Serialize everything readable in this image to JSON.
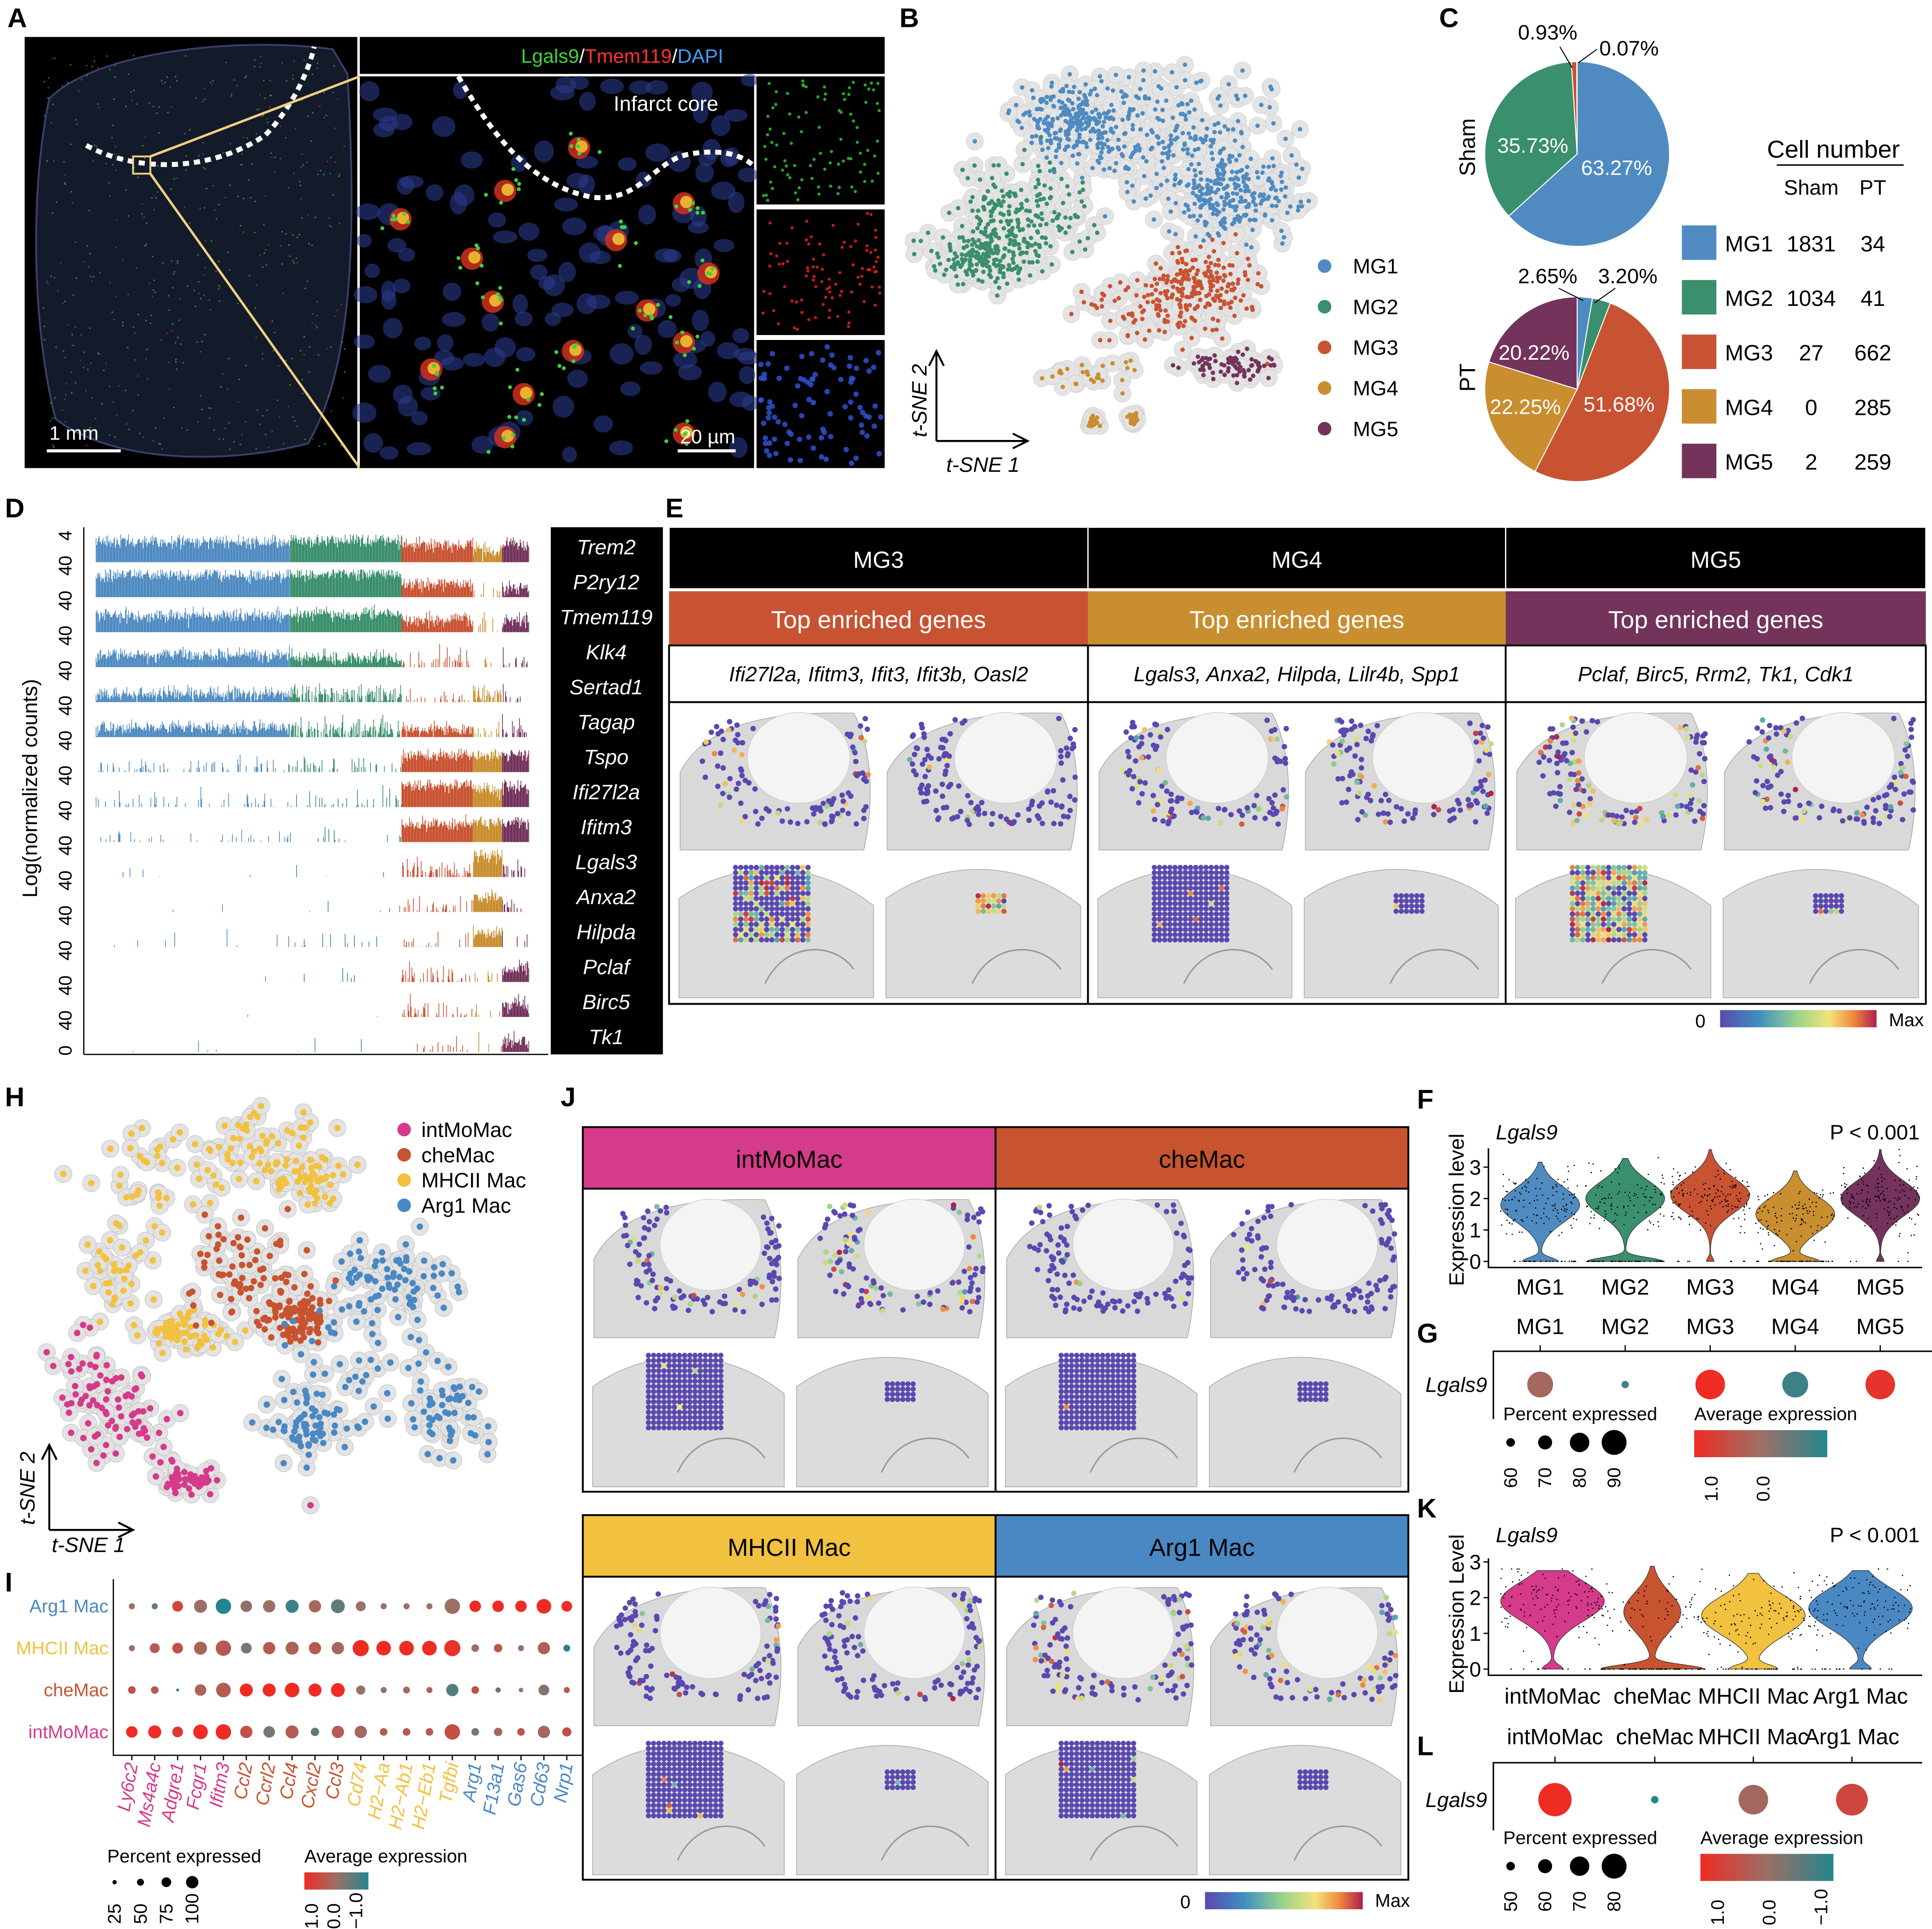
{
  "panel_labels": {
    "A": "A",
    "B": "B",
    "C": "C",
    "D": "D",
    "E": "E",
    "F": "F",
    "G": "G",
    "H": "H",
    "I": "I",
    "J": "J",
    "K": "K",
    "L": "L"
  },
  "panel_a": {
    "header": {
      "green": "Lgals9",
      "sep1": "/",
      "red": "Tmem119",
      "sep2": "/",
      "blue": "DAPI"
    },
    "infarct_label": "Infarct core",
    "scale_left": "1 mm",
    "scale_right": "20 µm"
  },
  "panel_b": {
    "xlabel": "t-SNE 1",
    "ylabel": "t-SNE 2",
    "legend": [
      {
        "name": "MG1",
        "color": "#4f8bc1"
      },
      {
        "name": "MG2",
        "color": "#3a8f6c"
      },
      {
        "name": "MG3",
        "color": "#c85332"
      },
      {
        "name": "MG4",
        "color": "#c98e2f"
      },
      {
        "name": "MG5",
        "color": "#73335b"
      }
    ]
  },
  "panel_c": {
    "sham_label": "Sham",
    "pt_label": "PT",
    "table_title": "Cell number",
    "col_sham": "Sham",
    "col_pt": "PT",
    "rows": [
      {
        "name": "MG1",
        "sham": "1831",
        "pt": "34",
        "color": "#4f8bc1"
      },
      {
        "name": "MG2",
        "sham": "1034",
        "pt": "41",
        "color": "#3a8f6c"
      },
      {
        "name": "MG3",
        "sham": "27",
        "pt": "662",
        "color": "#c85332"
      },
      {
        "name": "MG4",
        "sham": "0",
        "pt": "285",
        "color": "#c98e2f"
      },
      {
        "name": "MG5",
        "sham": "2",
        "pt": "259",
        "color": "#73335b"
      }
    ],
    "sham_pct_labels": [
      "63.27%",
      "35.73%",
      "0.93%",
      "0.07%"
    ],
    "pt_pct_labels": [
      "2.65%",
      "3.20%",
      "51.68%",
      "22.25%",
      "20.22%"
    ]
  },
  "panel_d": {
    "ylabel": "Log(normalized counts)",
    "tick_low": "0",
    "tick_high": "4",
    "genes": [
      "Trem2",
      "P2ry12",
      "Tmem119",
      "Klk4",
      "Sertad1",
      "Tagap",
      "Tspo",
      "Ifi27l2a",
      "Ifitm3",
      "Lgals3",
      "Anxa2",
      "Hilpda",
      "Pclaf",
      "Birc5",
      "Tk1"
    ],
    "cluster_levels": [
      [
        3.0,
        3.2,
        2.6,
        1.8,
        2.6
      ],
      [
        3.2,
        3.4,
        2.0,
        0.4,
        1.4
      ],
      [
        2.4,
        2.6,
        1.8,
        0.5,
        1.6
      ],
      [
        1.8,
        1.4,
        0.6,
        0.4,
        0.4
      ],
      [
        1.2,
        1.0,
        0.3,
        1.0,
        0.4
      ],
      [
        1.4,
        1.0,
        1.2,
        0.4,
        0.7
      ],
      [
        0.4,
        0.5,
        2.5,
        2.5,
        2.5
      ],
      [
        0.3,
        0.3,
        3.2,
        2.6,
        3.0
      ],
      [
        0.3,
        0.2,
        2.6,
        2.8,
        2.6
      ],
      [
        0.02,
        0.02,
        0.8,
        3.2,
        0.8
      ],
      [
        0.02,
        0.02,
        0.5,
        2.2,
        0.6
      ],
      [
        0.1,
        0.1,
        0.3,
        2.0,
        0.2
      ],
      [
        0.01,
        0.01,
        0.6,
        0.3,
        2.0
      ],
      [
        0.01,
        0.01,
        0.6,
        0.3,
        1.8
      ],
      [
        0.01,
        0.01,
        0.3,
        0.2,
        1.5
      ]
    ]
  },
  "panel_e": {
    "columns": [
      {
        "title": "MG3",
        "band": "Top enriched genes",
        "genes": "Ifi27l2a, Ifitm3, Ifit3, Ifit3b, Oasl2",
        "color": "#c85332"
      },
      {
        "title": "MG4",
        "band": "Top enriched genes",
        "genes": "Lgals3, Anxa2, Hilpda, Lilr4b, Spp1",
        "color": "#c98e2f"
      },
      {
        "title": "MG5",
        "band": "Top enriched genes",
        "genes": "Pclaf, Birc5, Rrm2, Tk1, Cdk1",
        "color": "#73335b"
      }
    ],
    "colorbar_min": "0",
    "colorbar_max": "Max"
  },
  "panel_h": {
    "xlabel": "t-SNE 1",
    "ylabel": "t-SNE 2",
    "legend": [
      {
        "name": "intMoMac",
        "color": "#d63a8a"
      },
      {
        "name": "cheMac",
        "color": "#c8532f"
      },
      {
        "name": "MHCII Mac",
        "color": "#f2c13f"
      },
      {
        "name": "Arg1 Mac",
        "color": "#4a88c4"
      }
    ]
  },
  "panel_j": {
    "cells": [
      {
        "title": "intMoMac",
        "color": "#d63a8a",
        "text_color": "#000000"
      },
      {
        "title": "cheMac",
        "color": "#c8532f",
        "text_color": "#000000"
      },
      {
        "title": "MHCII Mac",
        "color": "#f2c13f",
        "text_color": "#000000"
      },
      {
        "title": "Arg1 Mac",
        "color": "#4a88c4",
        "text_color": "#000000"
      }
    ],
    "colorbar_min": "0",
    "colorbar_max": "Max"
  },
  "chart_data": [
    {
      "id": "pie-sham",
      "type": "pie",
      "label": "Sham",
      "categories": [
        "MG1",
        "MG2",
        "MG3",
        "MG4",
        "MG5"
      ],
      "values": [
        63.27,
        35.73,
        0.93,
        0,
        0.07
      ],
      "colors": [
        "#4f8bc1",
        "#3a8f6c",
        "#c85332",
        "#c98e2f",
        "#73335b"
      ]
    },
    {
      "id": "pie-pt",
      "type": "pie",
      "label": "PT",
      "categories": [
        "MG1",
        "MG2",
        "MG3",
        "MG4",
        "MG5"
      ],
      "values": [
        2.65,
        3.2,
        51.68,
        22.25,
        20.22
      ],
      "colors": [
        "#4f8bc1",
        "#3a8f6c",
        "#c85332",
        "#c98e2f",
        "#73335b"
      ]
    },
    {
      "id": "violin-f",
      "type": "violin",
      "title": "Lgals9",
      "annotation": "P < 0.001",
      "ylabel": "Expression level",
      "categories": [
        "MG1",
        "MG2",
        "MG3",
        "MG4",
        "MG5"
      ],
      "colors": [
        "#4f8bc1",
        "#3a8f6c",
        "#c85332",
        "#c98e2f",
        "#73335b"
      ],
      "mode": [
        1.8,
        2.0,
        2.1,
        1.5,
        2.0
      ],
      "max": [
        3.2,
        3.3,
        3.6,
        2.9,
        3.6
      ],
      "zero_fraction": [
        0.2,
        0.35,
        0.05,
        0.25,
        0.05
      ],
      "yticks": [
        "0",
        "1",
        "2",
        "3"
      ],
      "ylim": [
        0,
        3.6
      ]
    },
    {
      "id": "dot-g",
      "type": "dot",
      "gene": "Lgals9",
      "categories": [
        "MG1",
        "MG2",
        "MG3",
        "MG4",
        "MG5"
      ],
      "percent": [
        80,
        55,
        85,
        80,
        85
      ],
      "avg_expression": [
        0.1,
        -0.8,
        1.2,
        -0.8,
        0.9
      ],
      "size_legend_title": "Percent expressed",
      "size_legend": [
        "60",
        "70",
        "80",
        "90"
      ],
      "color_legend_title": "Average expression",
      "color_legend": [
        "1.0",
        "0.0"
      ]
    },
    {
      "id": "violin-k",
      "type": "violin",
      "title": "Lgals9",
      "annotation": "P < 0.001",
      "ylabel": "Expression Level",
      "categories": [
        "intMoMac",
        "cheMac",
        "MHCII Mac",
        "Arg1 Mac"
      ],
      "colors": [
        "#d63a8a",
        "#c8532f",
        "#f2c13f",
        "#4a88c4"
      ],
      "mode": [
        1.9,
        1.6,
        1.5,
        1.7
      ],
      "max": [
        2.8,
        2.9,
        2.7,
        2.8
      ],
      "zero_fraction": [
        0.1,
        0.5,
        0.2,
        0.1
      ],
      "yticks": [
        "0",
        "1",
        "2",
        "3"
      ],
      "ylim": [
        0,
        3.1
      ]
    },
    {
      "id": "dot-l",
      "type": "dot",
      "gene": "Lgals9",
      "categories": [
        "intMoMac",
        "cheMac",
        "MHCII Mac",
        "Arg1 Mac"
      ],
      "percent": [
        80,
        45,
        75,
        78
      ],
      "avg_expression": [
        1.0,
        -1.0,
        0.1,
        0.6
      ],
      "size_legend_title": "Percent expressed",
      "size_legend": [
        "50",
        "60",
        "70",
        "80"
      ],
      "color_legend_title": "Average expression",
      "color_legend": [
        "1.0",
        "0.0",
        "−1.0"
      ]
    },
    {
      "id": "dot-i",
      "type": "dot",
      "rows": [
        {
          "name": "Arg1 Mac",
          "color": "#4a88c4",
          "percent": [
            25,
            25,
            55,
            70,
            85,
            60,
            65,
            70,
            65,
            75,
            50,
            25,
            25,
            25,
            85,
            60,
            60,
            60,
            80,
            55
          ],
          "avg_expression": [
            0,
            -0.5,
            0.6,
            0,
            -1,
            -0.1,
            0,
            -0.8,
            0.1,
            -0.5,
            0,
            0,
            0,
            0,
            0,
            1,
            1,
            1,
            1,
            1
          ]
        },
        {
          "name": "MHCII Mac",
          "color": "#f2c13f",
          "percent": [
            25,
            50,
            55,
            70,
            85,
            55,
            65,
            70,
            65,
            65,
            90,
            80,
            80,
            80,
            90,
            35,
            40,
            25,
            65,
            30
          ],
          "avg_expression": [
            0,
            0.3,
            0.5,
            0.2,
            0.3,
            -0.3,
            0.3,
            0.2,
            0.3,
            0.1,
            1,
            1,
            1,
            1,
            0.9,
            0,
            0.4,
            0,
            0.2,
            -1
          ]
        },
        {
          "name": "cheMac",
          "color": "#c8532f",
          "percent": [
            35,
            35,
            5,
            60,
            80,
            70,
            70,
            80,
            70,
            75,
            45,
            25,
            30,
            25,
            65,
            35,
            20,
            15,
            55,
            25
          ],
          "avg_expression": [
            0.4,
            0.3,
            -1,
            0.2,
            0.3,
            1,
            1,
            1,
            1,
            1,
            0,
            0,
            0.1,
            0.2,
            -0.6,
            0.5,
            -0.5,
            0,
            -0.2,
            0.3
          ]
        },
        {
          "name": "intMoMac",
          "color": "#d63a8a",
          "percent": [
            60,
            70,
            55,
            80,
            85,
            65,
            60,
            70,
            40,
            65,
            65,
            35,
            35,
            35,
            85,
            35,
            40,
            35,
            65,
            45
          ],
          "avg_expression": [
            1,
            1,
            0.8,
            1,
            1,
            0.5,
            -0.3,
            0.3,
            -0.5,
            0.3,
            0.1,
            0.3,
            0.3,
            0.3,
            0.5,
            -0.3,
            0.1,
            0.4,
            0.1,
            0.5
          ]
        }
      ],
      "genes": [
        {
          "name": "Ly6c2",
          "color": "#d63a8a"
        },
        {
          "name": "Ms4a4c",
          "color": "#d63a8a"
        },
        {
          "name": "Adgre1",
          "color": "#d63a8a"
        },
        {
          "name": "Fcgr1",
          "color": "#d63a8a"
        },
        {
          "name": "Ifitm3",
          "color": "#d63a8a"
        },
        {
          "name": "Ccl2",
          "color": "#c8532f"
        },
        {
          "name": "Ccrl2",
          "color": "#c8532f"
        },
        {
          "name": "Ccl4",
          "color": "#c8532f"
        },
        {
          "name": "Cxcl2",
          "color": "#c8532f"
        },
        {
          "name": "Ccl3",
          "color": "#c8532f"
        },
        {
          "name": "Cd74",
          "color": "#f2c13f"
        },
        {
          "name": "H2−Aa",
          "color": "#f2c13f"
        },
        {
          "name": "H2−Ab1",
          "color": "#f2c13f"
        },
        {
          "name": "H2−Eb1",
          "color": "#f2c13f"
        },
        {
          "name": "Tgfbi",
          "color": "#f2c13f"
        },
        {
          "name": "Arg1",
          "color": "#4a88c4"
        },
        {
          "name": "F13a1",
          "color": "#4a88c4"
        },
        {
          "name": "Gas6",
          "color": "#4a88c4"
        },
        {
          "name": "Cd63",
          "color": "#4a88c4"
        },
        {
          "name": "Nrp1",
          "color": "#4a88c4"
        }
      ],
      "size_legend_title": "Percent expressed",
      "size_legend": [
        "25",
        "50",
        "75",
        "100"
      ],
      "color_legend_title": "Average expression",
      "color_legend": [
        "1.0",
        "0.0",
        "−1.0"
      ]
    }
  ]
}
